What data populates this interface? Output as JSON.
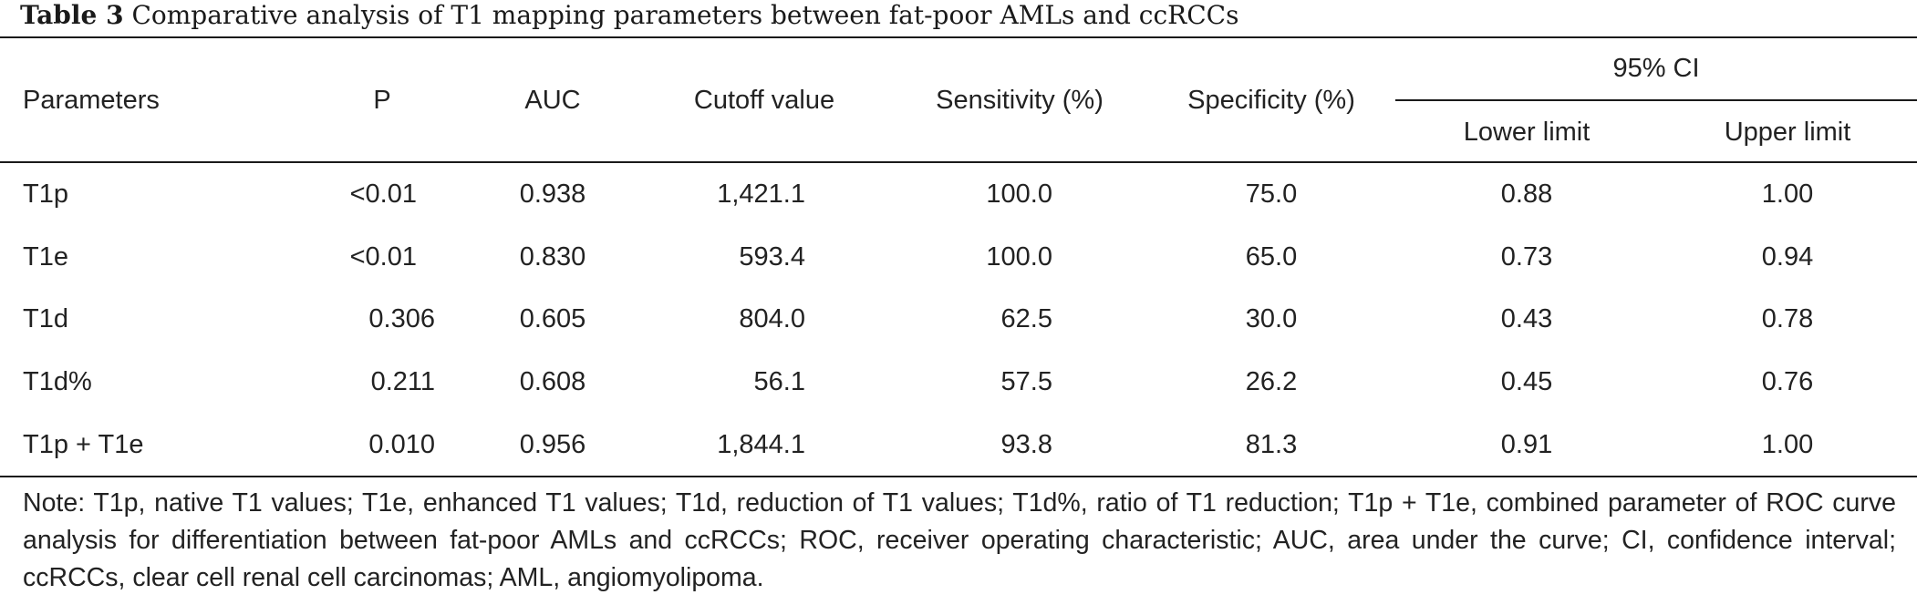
{
  "caption": {
    "label": "Table 3",
    "text": "Comparative analysis of T1 mapping parameters between fat-poor AMLs and ccRCCs"
  },
  "table": {
    "headers": {
      "parameters": "Parameters",
      "p": "P",
      "auc": "AUC",
      "cutoff": "Cutoff value",
      "sensitivity": "Sensitivity (%)",
      "specificity": "Specificity (%)",
      "ci": "95% CI",
      "lower": "Lower limit",
      "upper": "Upper limit"
    },
    "rows": [
      {
        "parameter": "T1p",
        "p": "<0.01",
        "auc": "0.938",
        "cutoff": "1,421.1",
        "sensitivity": "100.0",
        "specificity": "75.0",
        "lower": "0.88",
        "upper": "1.00"
      },
      {
        "parameter": "T1e",
        "p": "<0.01",
        "auc": "0.830",
        "cutoff": "593.4",
        "sensitivity": "100.0",
        "specificity": "65.0",
        "lower": "0.73",
        "upper": "0.94"
      },
      {
        "parameter": "T1d",
        "p": "0.306",
        "auc": "0.605",
        "cutoff": "804.0",
        "sensitivity": "62.5",
        "specificity": "30.0",
        "lower": "0.43",
        "upper": "0.78"
      },
      {
        "parameter": "T1d%",
        "p": "0.211",
        "auc": "0.608",
        "cutoff": "56.1",
        "sensitivity": "57.5",
        "specificity": "26.2",
        "lower": "0.45",
        "upper": "0.76"
      },
      {
        "parameter": "T1p + T1e",
        "p": "0.010",
        "auc": "0.956",
        "cutoff": "1,844.1",
        "sensitivity": "93.8",
        "specificity": "81.3",
        "lower": "0.91",
        "upper": "1.00"
      }
    ]
  },
  "note": "Note: T1p, native T1 values; T1e, enhanced T1 values; T1d, reduction of T1 values; T1d%, ratio of T1 reduction; T1p + T1e, combined parameter of ROC curve analysis for differentiation between fat-poor AMLs and ccRCCs; ROC, receiver operating characteristic; AUC, area under the curve; CI, confidence interval; ccRCCs, clear cell renal cell carcinomas; AML, angiomyolipoma."
}
